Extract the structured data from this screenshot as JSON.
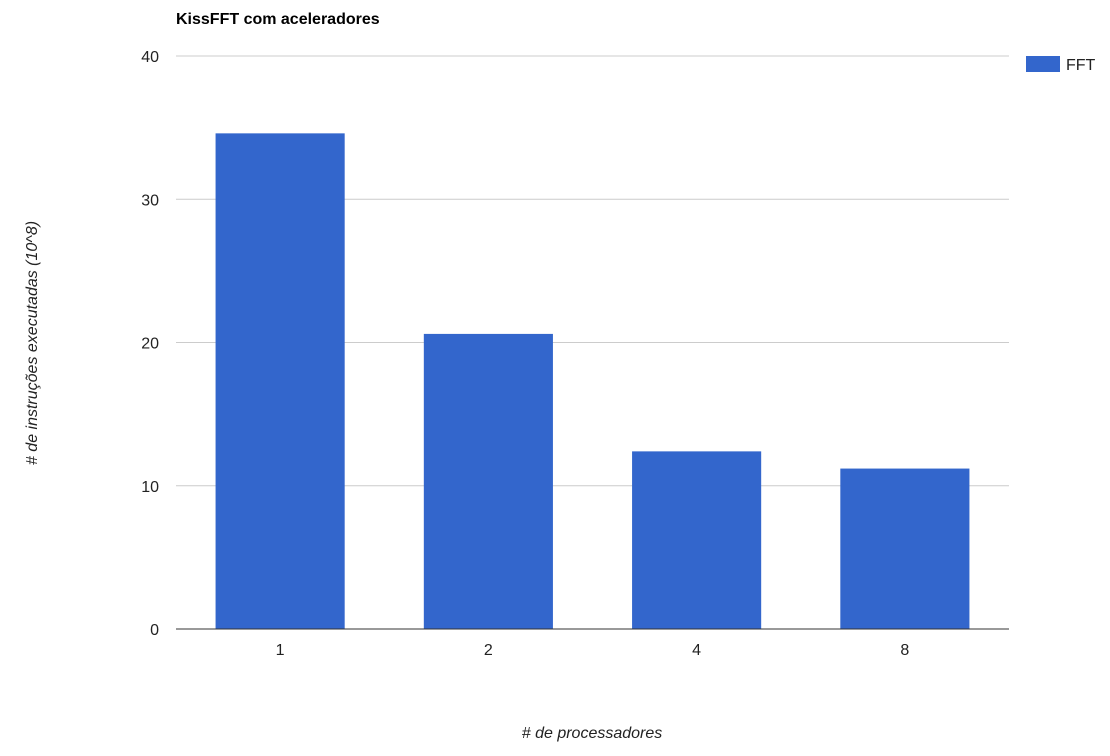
{
  "chart_data": {
    "type": "bar",
    "title": "KissFFT com aceleradores",
    "xlabel": "# de processadores",
    "ylabel": "# de instruções executadas (10^8)",
    "categories": [
      "1",
      "2",
      "4",
      "8"
    ],
    "series": [
      {
        "name": "FFT",
        "color": "#3366cc",
        "values": [
          34.6,
          20.6,
          12.4,
          11.2
        ]
      }
    ],
    "ylim": [
      0,
      40
    ],
    "yticks": [
      0,
      10,
      20,
      30,
      40
    ],
    "grid": true,
    "legend_position": "top-right"
  }
}
